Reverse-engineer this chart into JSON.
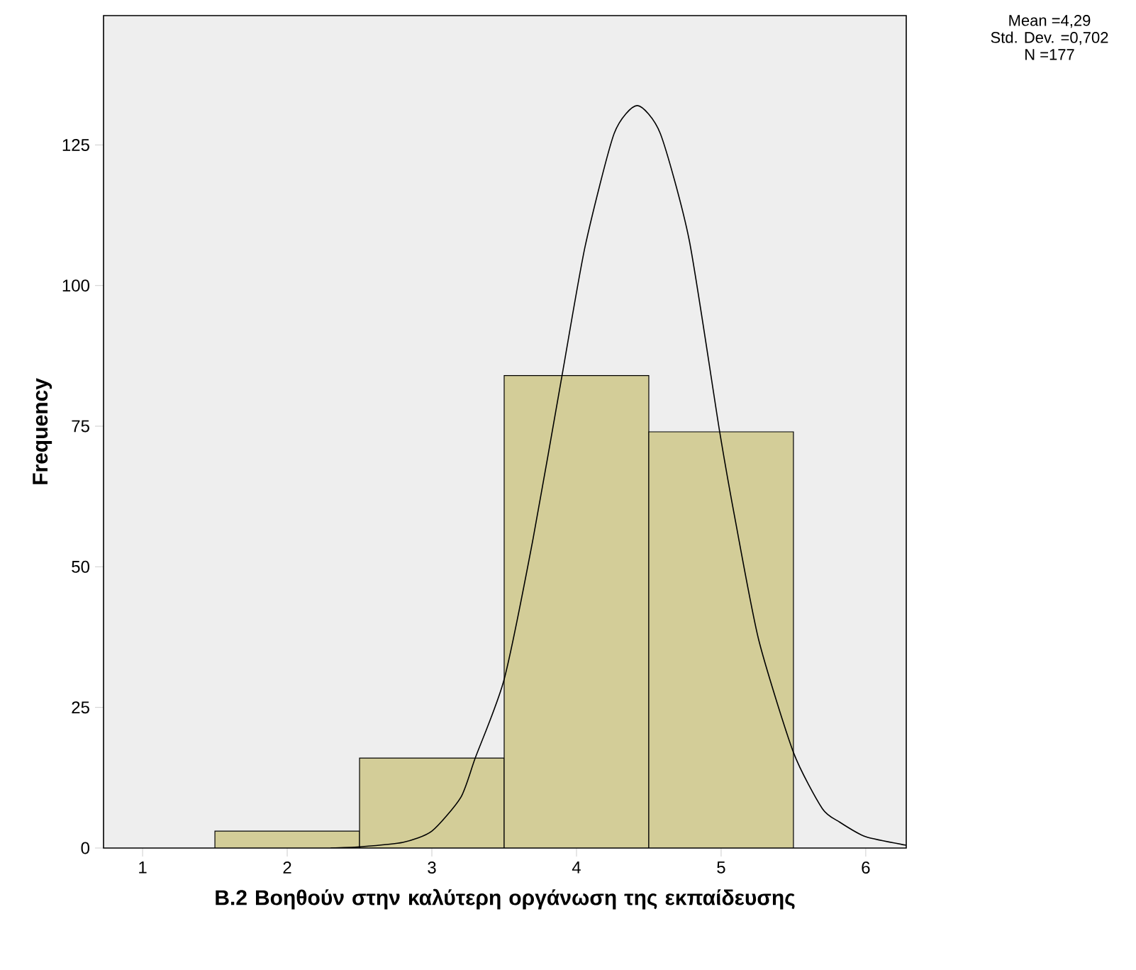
{
  "chart_data": {
    "type": "histogram",
    "xlabel": "B.2 Βοηθούν στην καλύτερη οργάνωση της εκπαίδευσης",
    "ylabel": "Frequency",
    "bins": [
      1.5,
      2.5,
      3.5,
      4.5,
      5.5
    ],
    "values": [
      3,
      16,
      84,
      74
    ],
    "color": "#d3cd98",
    "series": [
      {
        "type": "line",
        "color": "#000000",
        "x": [
          2.3,
          2.5,
          2.8,
          3.0,
          3.2,
          3.3,
          3.5,
          3.7,
          3.9,
          4.06,
          4.26,
          4.42,
          4.58,
          4.78,
          4.99,
          5.1,
          5.26,
          5.5,
          5.7,
          5.82,
          6.0,
          6.28
        ],
        "values": [
          0,
          0.2,
          1,
          3,
          9,
          16,
          30,
          55,
          84,
          107,
          127,
          132,
          127,
          108,
          74,
          58,
          37,
          17,
          7,
          4.6,
          2,
          0.5
        ]
      }
    ],
    "xlim": [
      0.73,
      6.28
    ],
    "ylim": [
      0,
      148
    ],
    "xticks": [
      1,
      2,
      3,
      4,
      5,
      6
    ],
    "yticks": [
      0,
      25,
      50,
      75,
      100,
      125
    ],
    "annotations": [
      "Mean =4,29",
      "Std. Dev. =0,702",
      "N =177"
    ]
  }
}
